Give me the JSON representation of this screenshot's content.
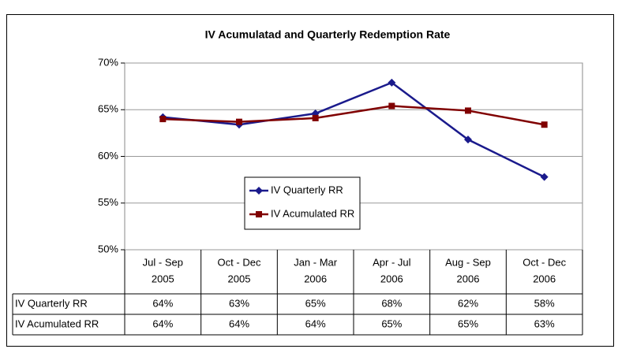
{
  "chart_data": {
    "type": "line",
    "title": "IV Acumulatad and Quarterly Redemption Rate",
    "categories": [
      [
        "Jul - Sep",
        "2005"
      ],
      [
        "Oct - Dec",
        "2005"
      ],
      [
        "Jan - Mar",
        "2006"
      ],
      [
        "Apr - Jul",
        "2006"
      ],
      [
        "Aug - Sep",
        "2006"
      ],
      [
        "Oct - Dec",
        "2006"
      ]
    ],
    "series": [
      {
        "name": "IV Quarterly RR",
        "color": "#1a1a8c",
        "marker": "diamond",
        "values": [
          64.2,
          63.4,
          64.6,
          67.9,
          61.8,
          57.8
        ],
        "value_labels": [
          "64%",
          "63%",
          "65%",
          "68%",
          "62%",
          "58%"
        ]
      },
      {
        "name": "IV Acumulated RR",
        "color": "#800000",
        "marker": "square",
        "values": [
          64.0,
          63.7,
          64.1,
          65.4,
          64.9,
          63.4
        ],
        "value_labels": [
          "64%",
          "64%",
          "64%",
          "65%",
          "65%",
          "63%"
        ]
      }
    ],
    "ylim": [
      50,
      70
    ],
    "yticks": [
      {
        "value": 50,
        "label": "50%"
      },
      {
        "value": 55,
        "label": "55%"
      },
      {
        "value": 60,
        "label": "60%"
      },
      {
        "value": 65,
        "label": "65%"
      },
      {
        "value": 70,
        "label": "70%"
      }
    ],
    "grid": true,
    "legend": "center"
  }
}
